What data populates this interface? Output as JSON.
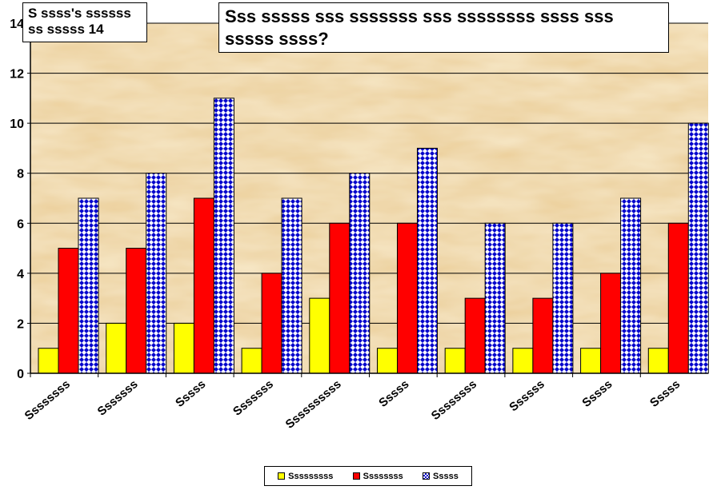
{
  "chart_data": {
    "type": "bar",
    "title": "Sss sssss sss sssssss sss ssssssss ssss sss sssss ssss?",
    "subtitle": "S ssss's ssssss ss sssss 14",
    "categories": [
      "Ssssssss",
      "Sssssss",
      "Sssss",
      "Sssssss",
      "Ssssssssss",
      "Sssss",
      "Ssssssss",
      "Ssssss",
      "Sssss",
      "Sssss"
    ],
    "series": [
      {
        "name": "Sssssssss",
        "color": "#ffff00",
        "values": [
          1,
          2,
          2,
          1,
          3,
          1,
          1,
          1,
          1,
          1
        ]
      },
      {
        "name": "Ssssssss",
        "color": "#ff0000",
        "values": [
          5,
          5,
          7,
          4,
          6,
          6,
          3,
          3,
          4,
          6
        ]
      },
      {
        "name": "Sssss",
        "color": "#0000cc",
        "pattern": "diamond-check",
        "values": [
          7,
          8,
          11,
          7,
          8,
          9,
          6,
          6,
          7,
          10
        ]
      }
    ],
    "yticks": [
      "0",
      "2",
      "4",
      "6",
      "8",
      "10",
      "12",
      "14"
    ],
    "ylim": [
      0,
      14
    ],
    "grid": true,
    "legend_position": "bottom",
    "background": "parchment"
  }
}
